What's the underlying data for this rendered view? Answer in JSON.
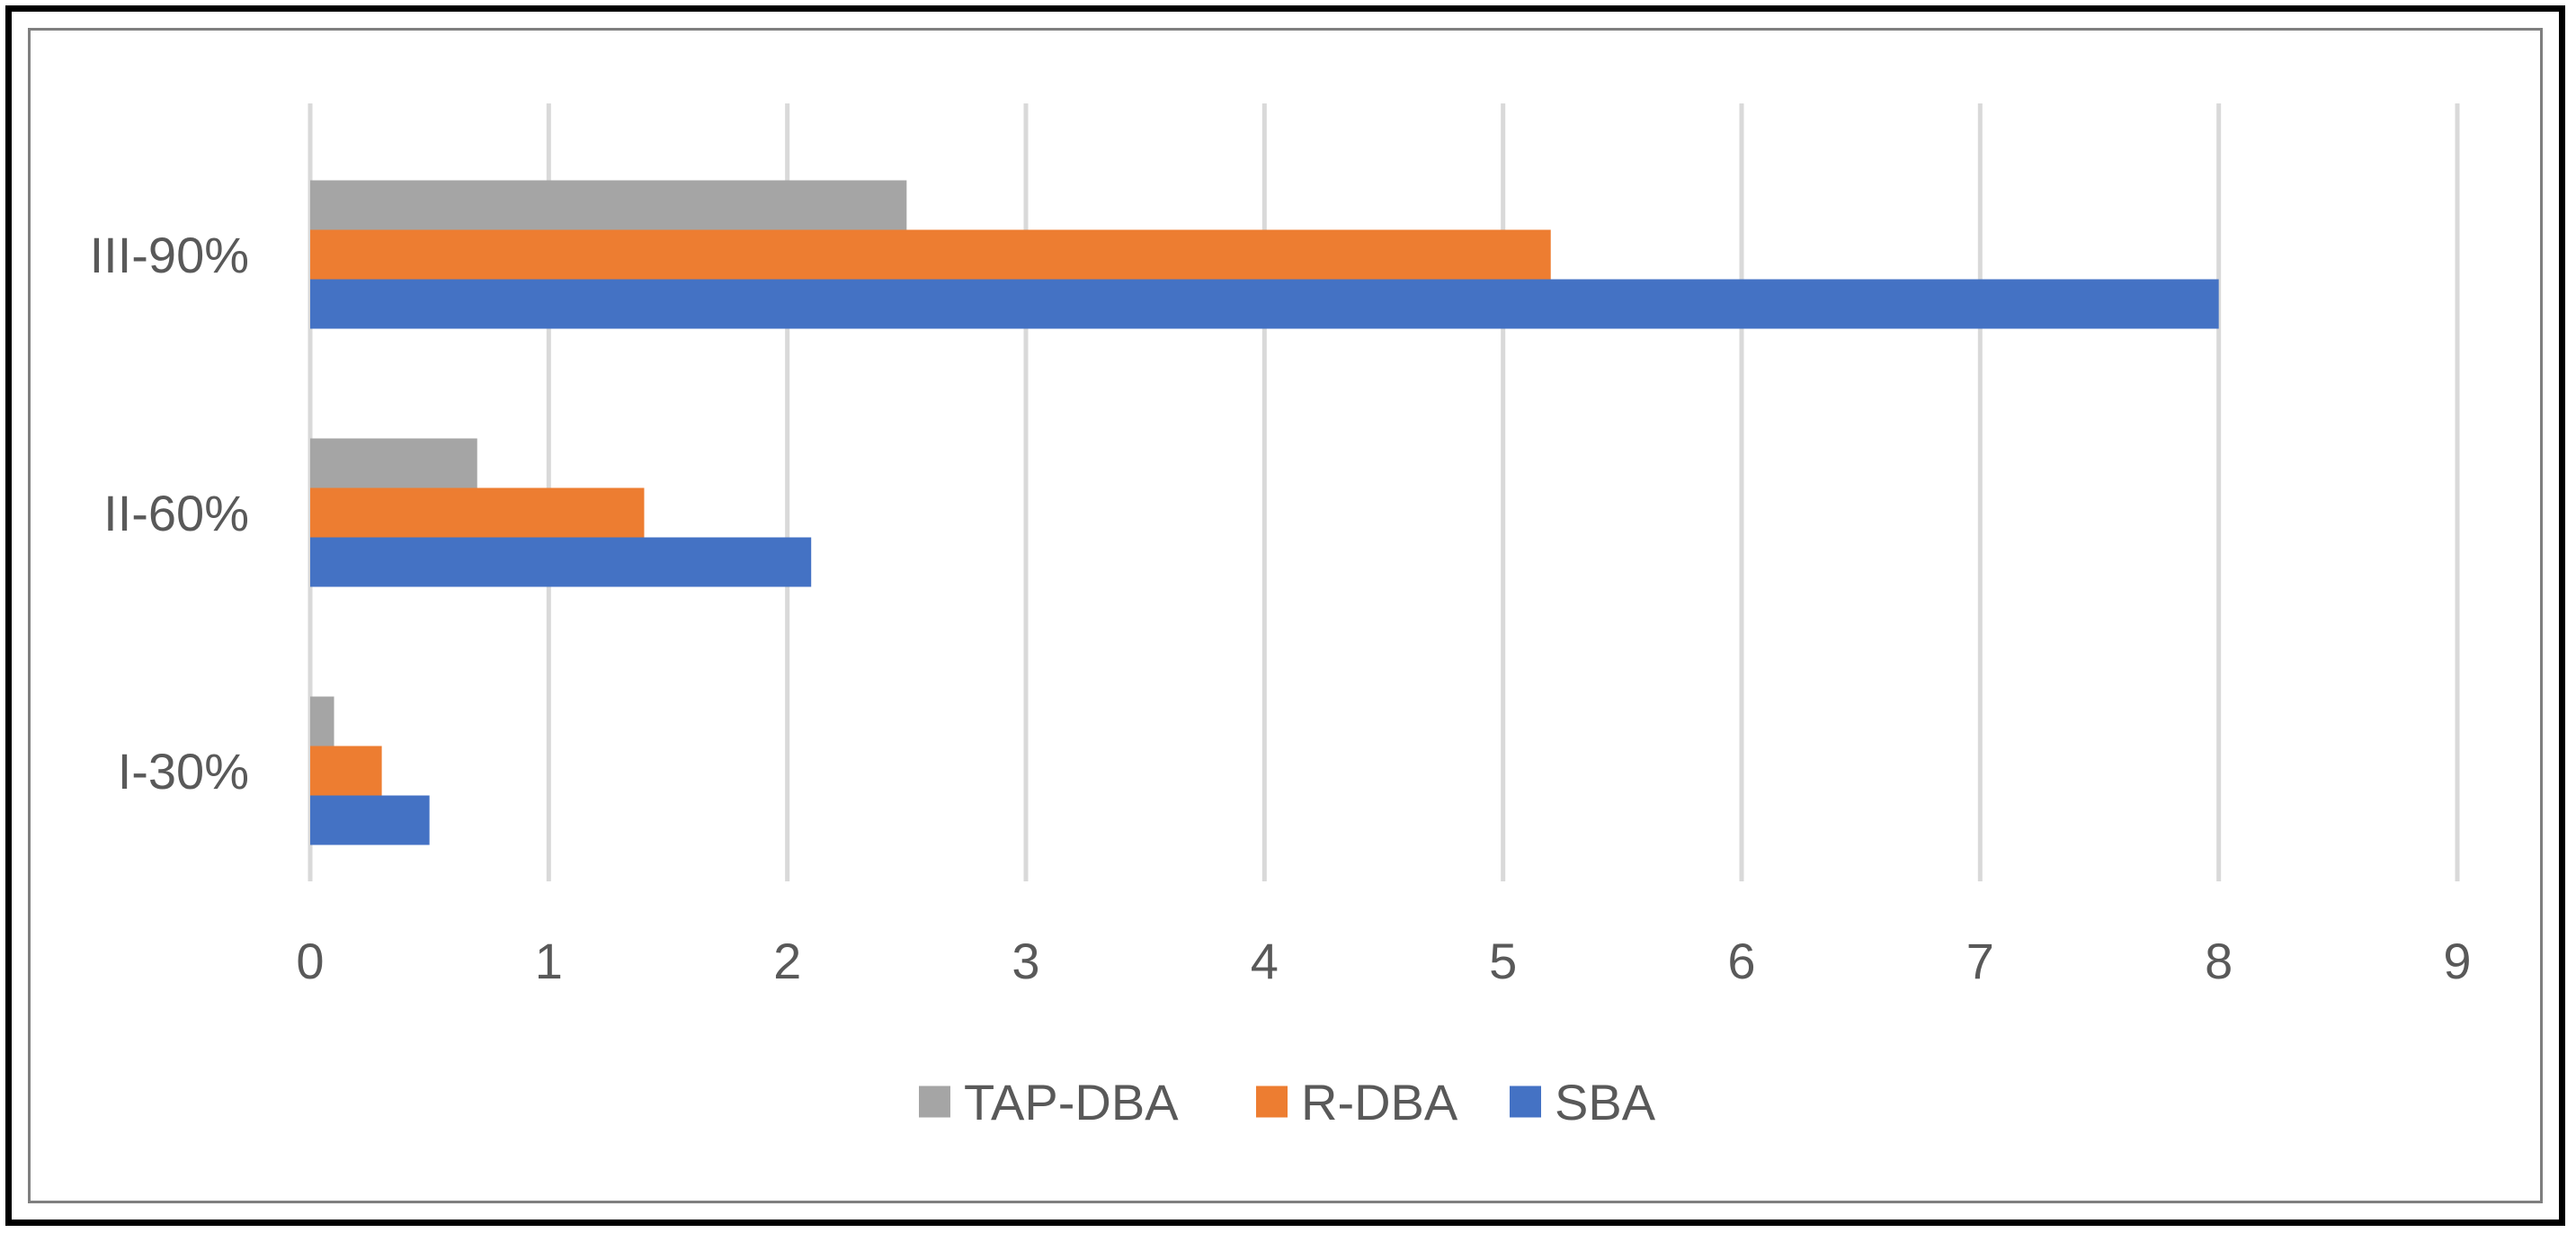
{
  "chart_data": {
    "type": "bar",
    "orientation": "horizontal",
    "categories": [
      "I-30%",
      "II-60%",
      "III-90%"
    ],
    "series": [
      {
        "name": "SBA",
        "color": "#4472C4",
        "values": [
          0.5,
          2.1,
          8.0
        ]
      },
      {
        "name": "R-DBA",
        "color": "#ED7D31",
        "values": [
          0.3,
          1.4,
          5.2
        ]
      },
      {
        "name": "TAP-DBA",
        "color": "#A5A5A5",
        "values": [
          0.1,
          0.7,
          2.5
        ]
      }
    ],
    "xlim": [
      0,
      9
    ],
    "xticks": [
      "0",
      "1",
      "2",
      "3",
      "4",
      "5",
      "6",
      "7",
      "8",
      "9"
    ],
    "legend_order": [
      "TAP-DBA",
      "R-DBA",
      "SBA"
    ],
    "legend_position": "bottom",
    "grid": "vertical",
    "grid_color": "#D9D9D9",
    "title": "",
    "xlabel": "",
    "ylabel": ""
  }
}
